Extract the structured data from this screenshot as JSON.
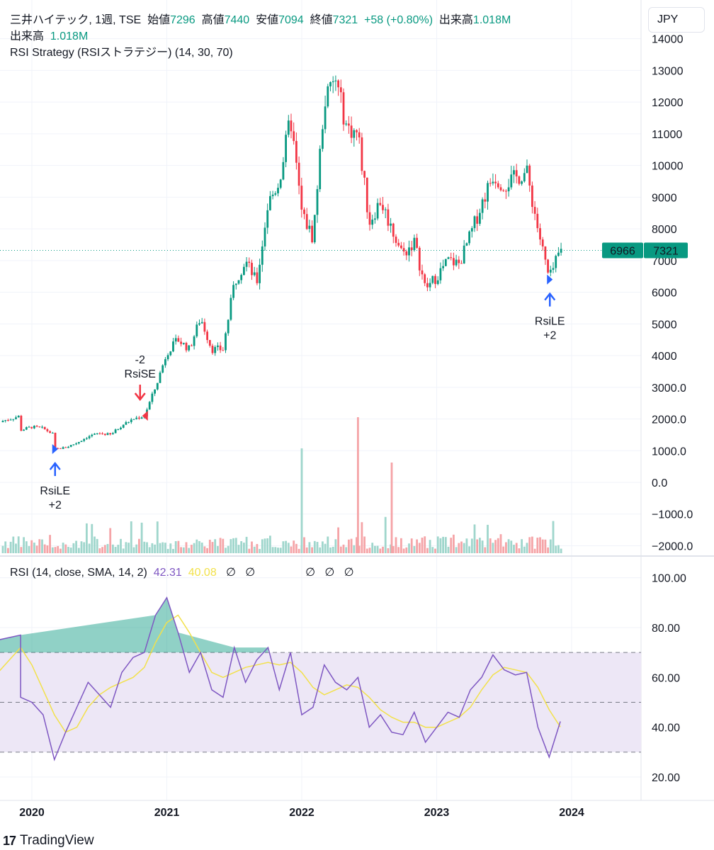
{
  "header": {
    "symbol": "三井ハイテック, 1週, TSE",
    "open_label": "始値",
    "open": "7296",
    "high_label": "高値",
    "high": "7440",
    "low_label": "安値",
    "low": "7094",
    "close_label": "終値",
    "close": "7321",
    "change": "+58 (+0.80%)",
    "volume_label": "出来高",
    "volume": "1.018M"
  },
  "volume_legend": {
    "label": "出来高",
    "value": "1.018M"
  },
  "strategy_legend": "RSI Strategy (RSIストラテジー) (14, 30, 70)",
  "rsi_legend": {
    "label": "RSI (14, close, SMA, 14, 2)",
    "rsi": "42.31",
    "sma": "40.08",
    "nulls": [
      "∅",
      "∅"
    ],
    "nulls2": [
      "∅",
      "∅",
      "∅"
    ]
  },
  "currency": "JPY",
  "price_tags": {
    "left": "6966",
    "right": "7321"
  },
  "brand": {
    "mark": "17",
    "name": "TradingView"
  },
  "colors": {
    "up": "#089981",
    "down": "#f23645",
    "rsi": "#7e57c2",
    "rsi_sma": "#f2e14b",
    "band": "#ede7f6",
    "vol_up": "#9fd6cc",
    "vol_down": "#f5a4a7",
    "long": "#2962ff",
    "short": "#f23645"
  },
  "chart_data": [
    {
      "type": "candlestick",
      "title": "三井ハイテック, 1週, TSE",
      "x_labels": [
        "2020",
        "2021",
        "2022",
        "2023",
        "2024"
      ],
      "y_ticks": [
        14000,
        13000,
        12000,
        11000,
        10000,
        9000,
        8000,
        7000,
        6000,
        5000,
        4000,
        "3000.0",
        "2000.0",
        "1000.0",
        "0.0",
        "−1000.0",
        "−2000.0"
      ],
      "approx_weekly_close_path": [
        [
          "2019-10",
          1900
        ],
        [
          "2019-11",
          2000
        ],
        [
          "2019-12",
          2100
        ],
        [
          "2019-12",
          1650
        ],
        [
          "2020-01",
          1750
        ],
        [
          "2020-02",
          1700
        ],
        [
          "2020-03",
          1500
        ],
        [
          "2020-03",
          1050
        ],
        [
          "2020-04",
          1100
        ],
        [
          "2020-05",
          1250
        ],
        [
          "2020-06",
          1450
        ],
        [
          "2020-07",
          1550
        ],
        [
          "2020-08",
          1500
        ],
        [
          "2020-09",
          1800
        ],
        [
          "2020-10",
          2000
        ],
        [
          "2020-11",
          2100
        ],
        [
          "2020-12",
          3000
        ],
        [
          "2021-01",
          4100
        ],
        [
          "2021-02",
          4500
        ],
        [
          "2021-03",
          4200
        ],
        [
          "2021-04",
          5200
        ],
        [
          "2021-05",
          4200
        ],
        [
          "2021-06",
          4200
        ],
        [
          "2021-07",
          6300
        ],
        [
          "2021-08",
          7000
        ],
        [
          "2021-09",
          6300
        ],
        [
          "2021-10",
          8800
        ],
        [
          "2021-11",
          9500
        ],
        [
          "2021-12",
          11500
        ],
        [
          "2022-01",
          8500
        ],
        [
          "2022-02",
          7700
        ],
        [
          "2022-03",
          12000
        ],
        [
          "2022-04",
          12700
        ],
        [
          "2022-05",
          11200
        ],
        [
          "2022-06",
          11000
        ],
        [
          "2022-07",
          8200
        ],
        [
          "2022-08",
          8900
        ],
        [
          "2022-09",
          8000
        ],
        [
          "2022-10",
          7200
        ],
        [
          "2022-11",
          7600
        ],
        [
          "2022-12",
          6100
        ],
        [
          "2023-01",
          6500
        ],
        [
          "2023-02",
          7000
        ],
        [
          "2023-03",
          6900
        ],
        [
          "2023-04",
          7800
        ],
        [
          "2023-05",
          8800
        ],
        [
          "2023-06",
          9700
        ],
        [
          "2023-07",
          9400
        ],
        [
          "2023-08",
          9600
        ],
        [
          "2023-09",
          9800
        ],
        [
          "2023-10",
          8000
        ],
        [
          "2023-11",
          6400
        ],
        [
          "2023-12",
          7321
        ]
      ],
      "last": {
        "open": 7296,
        "high": 7440,
        "low": 7094,
        "close": 7321
      },
      "signals": [
        {
          "label": "RsiLE",
          "qty": "+2",
          "date": "2020-03",
          "price": 1050,
          "side": "long"
        },
        {
          "label": "RsiSE",
          "qty": "-2",
          "date": "2020-11",
          "price": 2100,
          "side": "short"
        },
        {
          "label": "RsiLE",
          "qty": "+2",
          "date": "2023-11",
          "price": 6400,
          "side": "long"
        }
      ],
      "volume_spikes": [
        [
          "2022-06",
          "high",
          "down"
        ],
        [
          "2022-01",
          "high",
          "up"
        ],
        [
          "2022-09",
          "high",
          "down"
        ]
      ]
    },
    {
      "type": "line",
      "title": "RSI (14, close, SMA, 14, 2)",
      "y_ticks": [
        "100.00",
        "80.00",
        "60.00",
        "40.00",
        "20.00"
      ],
      "bands": {
        "upper": 70,
        "middle": 50,
        "lower": 30
      },
      "series": [
        {
          "name": "RSI",
          "values": [
            [
              "2019-10",
              75
            ],
            [
              "2019-12",
              77
            ],
            [
              "2019-12",
              52
            ],
            [
              "2020-01",
              50
            ],
            [
              "2020-02",
              45
            ],
            [
              "2020-03",
              27
            ],
            [
              "2020-04",
              38
            ],
            [
              "2020-05",
              48
            ],
            [
              "2020-06",
              58
            ],
            [
              "2020-07",
              53
            ],
            [
              "2020-08",
              48
            ],
            [
              "2020-09",
              62
            ],
            [
              "2020-10",
              68
            ],
            [
              "2020-11",
              70
            ],
            [
              "2020-12",
              85
            ],
            [
              "2021-01",
              92
            ],
            [
              "2021-02",
              78
            ],
            [
              "2021-03",
              62
            ],
            [
              "2021-04",
              70
            ],
            [
              "2021-05",
              55
            ],
            [
              "2021-06",
              52
            ],
            [
              "2021-07",
              72
            ],
            [
              "2021-08",
              58
            ],
            [
              "2021-09",
              67
            ],
            [
              "2021-10",
              72
            ],
            [
              "2021-11",
              55
            ],
            [
              "2021-12",
              70
            ],
            [
              "2022-01",
              45
            ],
            [
              "2022-02",
              48
            ],
            [
              "2022-03",
              65
            ],
            [
              "2022-04",
              58
            ],
            [
              "2022-05",
              55
            ],
            [
              "2022-06",
              60
            ],
            [
              "2022-07",
              40
            ],
            [
              "2022-08",
              45
            ],
            [
              "2022-09",
              38
            ],
            [
              "2022-10",
              37
            ],
            [
              "2022-11",
              46
            ],
            [
              "2022-12",
              34
            ],
            [
              "2023-01",
              40
            ],
            [
              "2023-02",
              46
            ],
            [
              "2023-03",
              44
            ],
            [
              "2023-04",
              55
            ],
            [
              "2023-05",
              60
            ],
            [
              "2023-06",
              69
            ],
            [
              "2023-07",
              63
            ],
            [
              "2023-08",
              61
            ],
            [
              "2023-09",
              62
            ],
            [
              "2023-10",
              40
            ],
            [
              "2023-11",
              28
            ],
            [
              "2023-12",
              42.31
            ]
          ]
        },
        {
          "name": "SMA",
          "values": [
            [
              "2019-10",
              62
            ],
            [
              "2019-12",
              72
            ],
            [
              "2020-01",
              65
            ],
            [
              "2020-02",
              55
            ],
            [
              "2020-03",
              45
            ],
            [
              "2020-04",
              38
            ],
            [
              "2020-05",
              40
            ],
            [
              "2020-06",
              48
            ],
            [
              "2020-07",
              53
            ],
            [
              "2020-08",
              56
            ],
            [
              "2020-09",
              58
            ],
            [
              "2020-10",
              60
            ],
            [
              "2020-11",
              64
            ],
            [
              "2020-12",
              74
            ],
            [
              "2021-01",
              82
            ],
            [
              "2021-02",
              85
            ],
            [
              "2021-03",
              78
            ],
            [
              "2021-04",
              70
            ],
            [
              "2021-05",
              62
            ],
            [
              "2021-06",
              60
            ],
            [
              "2021-07",
              62
            ],
            [
              "2021-08",
              64
            ],
            [
              "2021-09",
              65
            ],
            [
              "2021-10",
              66
            ],
            [
              "2021-11",
              65
            ],
            [
              "2021-12",
              66
            ],
            [
              "2022-01",
              62
            ],
            [
              "2022-02",
              56
            ],
            [
              "2022-03",
              53
            ],
            [
              "2022-04",
              55
            ],
            [
              "2022-05",
              57
            ],
            [
              "2022-06",
              56
            ],
            [
              "2022-07",
              52
            ],
            [
              "2022-08",
              47
            ],
            [
              "2022-09",
              44
            ],
            [
              "2022-10",
              42
            ],
            [
              "2022-11",
              42
            ],
            [
              "2022-12",
              40
            ],
            [
              "2023-01",
              40
            ],
            [
              "2023-02",
              42
            ],
            [
              "2023-03",
              44
            ],
            [
              "2023-04",
              48
            ],
            [
              "2023-05",
              55
            ],
            [
              "2023-06",
              61
            ],
            [
              "2023-07",
              64
            ],
            [
              "2023-08",
              63
            ],
            [
              "2023-09",
              62
            ],
            [
              "2023-10",
              56
            ],
            [
              "2023-11",
              47
            ],
            [
              "2023-12",
              40.08
            ]
          ]
        }
      ]
    }
  ]
}
